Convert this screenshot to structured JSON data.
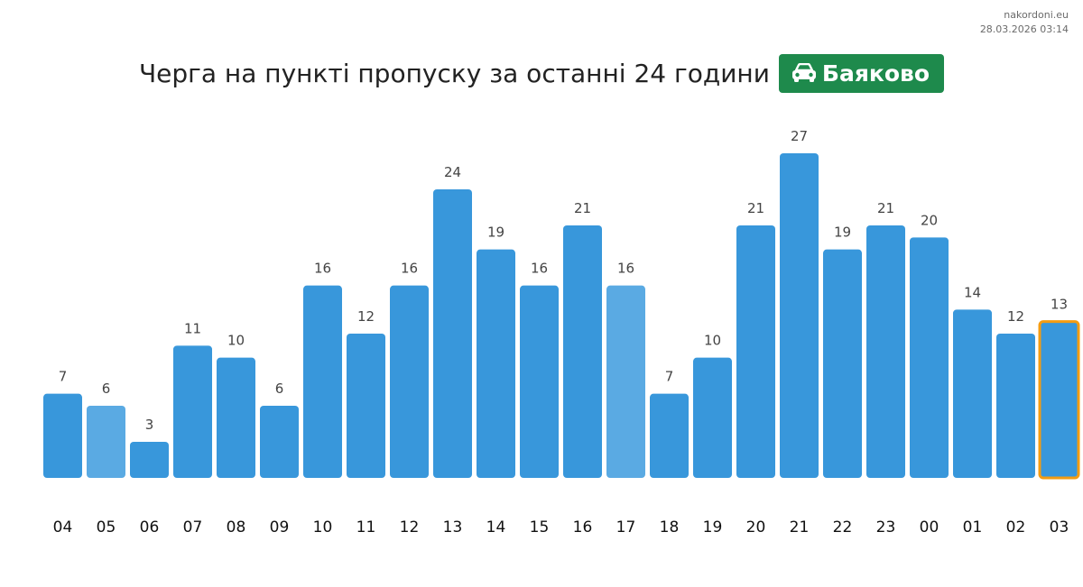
{
  "source": {
    "site": "nakordoni.eu",
    "datetime": "28.03.2026 03:14"
  },
  "header": {
    "title": "Черга на пункті пропуску за останні 24 години",
    "badge": {
      "label": "Баяково",
      "icon": "car-icon",
      "color": "#1e8a4c"
    }
  },
  "colors": {
    "bar": "#3897db",
    "bar_light": "#5aaae3",
    "current_outline": "#f39c12",
    "value_label": "#444444",
    "tick_label": "#111111"
  },
  "chart_data": {
    "type": "bar",
    "title": "",
    "xlabel": "",
    "ylabel": "",
    "categories": [
      "04",
      "05",
      "06",
      "07",
      "08",
      "09",
      "10",
      "11",
      "12",
      "13",
      "14",
      "15",
      "16",
      "17",
      "18",
      "19",
      "20",
      "21",
      "22",
      "23",
      "00",
      "01",
      "02",
      "03"
    ],
    "values": [
      7,
      6,
      3,
      11,
      10,
      6,
      16,
      12,
      16,
      24,
      19,
      16,
      21,
      16,
      7,
      10,
      21,
      27,
      19,
      21,
      20,
      14,
      12,
      13
    ],
    "light_bars": [
      "05",
      "17"
    ],
    "highlighted_bar": "03",
    "ylim": [
      0,
      27
    ],
    "grid": false,
    "legend": "none"
  }
}
